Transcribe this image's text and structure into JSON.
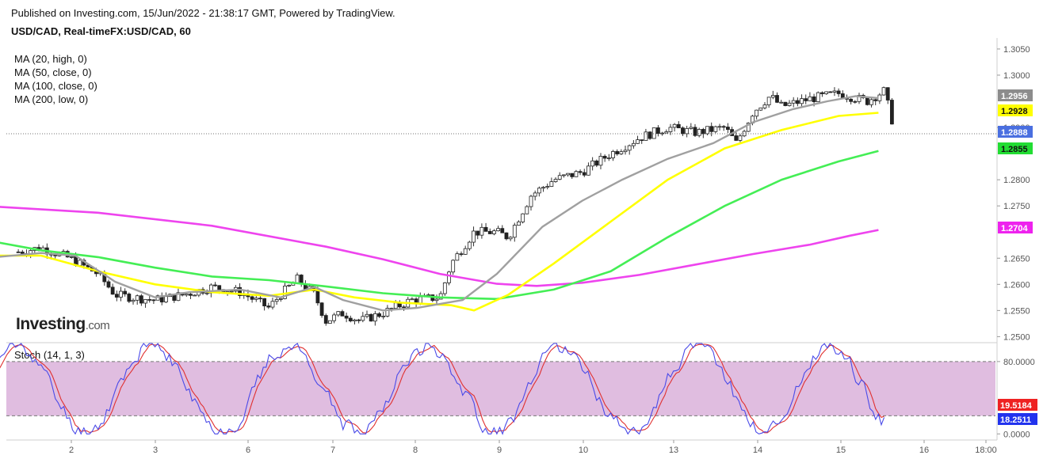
{
  "header": {
    "published": "Published on Investing.com, 15/Jun/2022 - 21:38:17 GMT, Powered by TradingView.",
    "symbol": "USD/CAD, Real-timeFX:USD/CAD, 60"
  },
  "watermark": {
    "brand": "Investing",
    "suffix": ".com"
  },
  "colors": {
    "ma20": "#a0a0a0",
    "ma50": "#ffff00",
    "ma100": "#44ee55",
    "ma200": "#ee44ee",
    "candle_up": "#2e8b57",
    "candle_down": "#e03030",
    "stoch_k": "#4a4ae8",
    "stoch_d": "#e03030",
    "stoch_band": "#e0bde0",
    "last_price": "#4a6fe0"
  },
  "chart_data": [
    {
      "type": "line",
      "subtype": "candlestick",
      "title": "USD/CAD, Real-timeFX:USD/CAD, 60",
      "y_axis": {
        "ticks": [
          1.25,
          1.255,
          1.26,
          1.265,
          1.275,
          1.28,
          1.29,
          1.3,
          1.305
        ],
        "range": [
          1.249,
          1.3065
        ],
        "position": "right"
      },
      "x_axis": {
        "ticks": [
          "2",
          "3",
          "6",
          "7",
          "8",
          "9",
          "10",
          "13",
          "14",
          "15",
          "16",
          "18:00"
        ]
      },
      "price_labels": [
        {
          "value": "1.2956",
          "series": "MA (20, high, 0)"
        },
        {
          "value": "1.2928",
          "series": "MA (50, close, 0)"
        },
        {
          "value": "1.2888",
          "series": "last"
        },
        {
          "value": "1.2855",
          "series": "MA (100, close, 0)"
        },
        {
          "value": "1.2704",
          "series": "MA (200, low, 0)"
        }
      ],
      "price_path": {
        "x": [
          0,
          0.5,
          1,
          1.5,
          2,
          2.3,
          2.6,
          3,
          3.5,
          4,
          4.5,
          5,
          5.2,
          5.5,
          5.8,
          6,
          6.3,
          6.6,
          7,
          7.5,
          8,
          8.2,
          8.6,
          9,
          9.2,
          9.6,
          10,
          10.5,
          11,
          11.5,
          12,
          12.5,
          13,
          13.2,
          13.5,
          13.8,
          14,
          14.5,
          15,
          15.5,
          15.8,
          16
        ],
        "close": [
          1.265,
          1.266,
          1.267,
          1.265,
          1.262,
          1.258,
          1.2575,
          1.257,
          1.258,
          1.2595,
          1.2585,
          1.2555,
          1.258,
          1.261,
          1.258,
          1.253,
          1.2545,
          1.253,
          1.2545,
          1.257,
          1.2575,
          1.264,
          1.27,
          1.27,
          1.269,
          1.277,
          1.28,
          1.2815,
          1.285,
          1.288,
          1.29,
          1.289,
          1.29,
          1.287,
          1.293,
          1.296,
          1.294,
          1.2955,
          1.2965,
          1.295,
          1.297,
          1.2888
        ]
      },
      "series": [
        {
          "name": "MA (20, high, 0)",
          "last": 1.2956
        },
        {
          "name": "MA (50, close, 0)",
          "last": 1.2928
        },
        {
          "name": "MA (100, close, 0)",
          "last": 1.2855
        },
        {
          "name": "MA (200, low, 0)",
          "last": 1.2704
        }
      ],
      "grid": false,
      "legend_position": "top-left"
    },
    {
      "type": "line",
      "title": "Stoch (14, 1, 3)",
      "y_axis": {
        "ticks": [
          0.0,
          80.0
        ],
        "range": [
          -5,
          100
        ],
        "position": "right"
      },
      "levels": [
        20,
        80
      ],
      "price_labels": [
        {
          "value": "19.5184",
          "series": "%D"
        },
        {
          "value": "18.2511",
          "series": "%K"
        }
      ],
      "series": [
        {
          "name": "%K",
          "last": 18.2511
        },
        {
          "name": "%D",
          "last": 19.5184
        }
      ],
      "grid": false
    }
  ],
  "ui": {
    "ma_legend": [
      "MA (20, high, 0)",
      "MA (50, close, 0)",
      "MA (100, close, 0)",
      "MA (200, low, 0)"
    ],
    "stoch_label": "Stoch (14, 1, 3)"
  }
}
